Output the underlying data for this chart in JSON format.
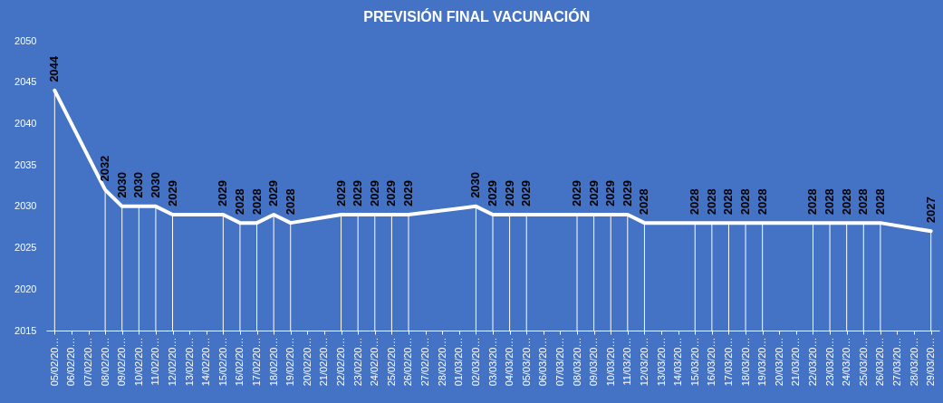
{
  "chart_data": {
    "type": "line",
    "title": "PREVISIÓN FINAL VACUNACIÓN",
    "categories": [
      "05/02/20…",
      "06/02/20…",
      "07/02/20…",
      "08/02/20…",
      "09/02/20…",
      "10/02/20…",
      "11/02/20…",
      "12/02/20…",
      "13/02/20…",
      "14/02/20…",
      "15/02/20…",
      "16/02/20…",
      "17/02/20…",
      "18/02/20…",
      "19/02/20…",
      "20/02/20…",
      "21/02/20…",
      "22/02/20…",
      "23/02/20…",
      "24/02/20…",
      "25/02/20…",
      "26/02/20…",
      "27/02/20…",
      "28/02/20…",
      "01/03/20…",
      "02/03/20…",
      "03/03/20…",
      "04/03/20…",
      "05/03/20…",
      "06/03/20…",
      "07/03/20…",
      "08/03/20…",
      "09/03/20…",
      "10/03/20…",
      "11/03/20…",
      "12/03/20…",
      "13/03/20…",
      "14/03/20…",
      "15/03/20…",
      "16/03/20…",
      "17/03/20…",
      "18/03/20…",
      "19/03/20…",
      "20/03/20…",
      "21/03/20…",
      "22/03/20…",
      "23/03/20…",
      "24/03/20…",
      "25/03/20…",
      "26/03/20…",
      "27/03/20…",
      "28/03/20…",
      "29/03/20…"
    ],
    "series": [
      {
        "color": "#ffffff",
        "values": [
          2044,
          null,
          null,
          2032,
          2030,
          2030,
          2030,
          2029,
          null,
          null,
          2029,
          2028,
          2028,
          2029,
          2028,
          null,
          null,
          2029,
          2029,
          2029,
          2029,
          2029,
          null,
          null,
          null,
          2030,
          2029,
          2029,
          2029,
          null,
          null,
          2029,
          2029,
          2029,
          2029,
          2028,
          null,
          null,
          2028,
          2028,
          2028,
          2028,
          2028,
          null,
          null,
          2028,
          2028,
          2028,
          2028,
          2028,
          null,
          null,
          2027
        ]
      }
    ],
    "ylim": [
      2015,
      2050
    ],
    "yticks": [
      2015,
      2020,
      2025,
      2030,
      2035,
      2040,
      2045,
      2050
    ],
    "data_labels": true,
    "line_style": "solid"
  }
}
